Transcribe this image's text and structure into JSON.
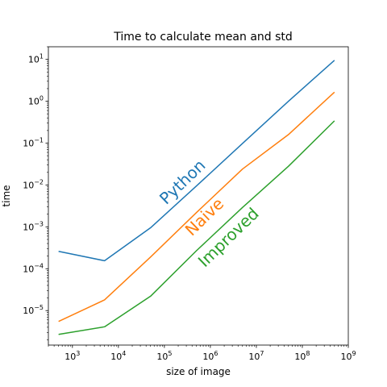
{
  "chart_data": {
    "type": "line",
    "title": "Time to calculate mean and std",
    "xlabel": "size of image",
    "ylabel": "time",
    "xscale": "log",
    "yscale": "log",
    "xlim": [
      300,
      1000000000
    ],
    "ylim": [
      1.5e-06,
      20
    ],
    "grid": false,
    "legend": "none",
    "x": [
      500,
      5000,
      50000,
      500000,
      5000000,
      50000000,
      500000000
    ],
    "xticks": [
      {
        "value": 1000,
        "base": "10",
        "exp": "3"
      },
      {
        "value": 10000,
        "base": "10",
        "exp": "4"
      },
      {
        "value": 100000,
        "base": "10",
        "exp": "5"
      },
      {
        "value": 1000000,
        "base": "10",
        "exp": "6"
      },
      {
        "value": 10000000,
        "base": "10",
        "exp": "7"
      },
      {
        "value": 100000000,
        "base": "10",
        "exp": "8"
      },
      {
        "value": 1000000000,
        "base": "10",
        "exp": "9"
      }
    ],
    "yticks": [
      {
        "value": 1e-05,
        "base": "10",
        "exp": "−5"
      },
      {
        "value": 0.0001,
        "base": "10",
        "exp": "−4"
      },
      {
        "value": 0.001,
        "base": "10",
        "exp": "−3"
      },
      {
        "value": 0.01,
        "base": "10",
        "exp": "−2"
      },
      {
        "value": 0.1,
        "base": "10",
        "exp": "−1"
      },
      {
        "value": 1,
        "base": "10",
        "exp": "0"
      },
      {
        "value": 10,
        "base": "10",
        "exp": "1"
      }
    ],
    "series": [
      {
        "name": "Python",
        "color": "#1f77b4",
        "values": [
          0.00026,
          0.000155,
          0.00095,
          0.0095,
          0.098,
          1.0,
          9.5
        ]
      },
      {
        "name": "Naive",
        "color": "#ff7f0e",
        "values": [
          5.5e-06,
          1.8e-05,
          0.00019,
          0.0022,
          0.024,
          0.16,
          1.65
        ]
      },
      {
        "name": "Improved",
        "color": "#2ca02c",
        "values": [
          2.7e-06,
          4.1e-06,
          2.2e-05,
          0.00027,
          0.0029,
          0.028,
          0.34
        ]
      }
    ],
    "annotations": [
      {
        "text": "Python",
        "x": 300000,
        "y": 0.0095,
        "rotation": -44,
        "color": "#1f77b4"
      },
      {
        "text": "Naive",
        "x": 900000,
        "y": 0.0014,
        "rotation": -44,
        "color": "#ff7f0e"
      },
      {
        "text": "Improved",
        "x": 3000000,
        "y": 0.00045,
        "rotation": -44,
        "color": "#2ca02c"
      }
    ]
  }
}
